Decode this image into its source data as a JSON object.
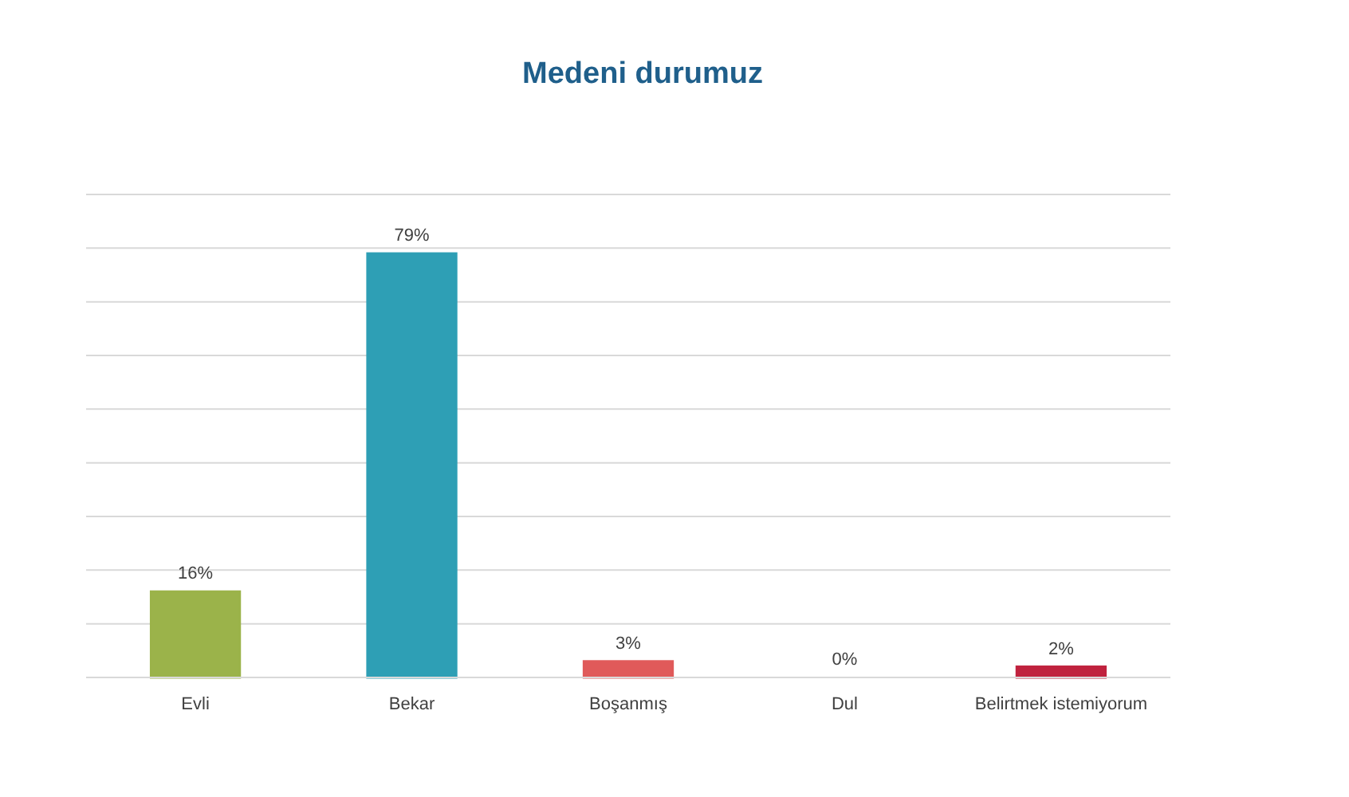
{
  "chart_data": {
    "type": "bar",
    "title": "Medeni durumuz",
    "categories": [
      "Evli",
      "Bekar",
      "Boşanmış",
      "Dul",
      "Belirtmek istemiyorum"
    ],
    "values": [
      16,
      79,
      3,
      0,
      2
    ],
    "colors": [
      "#9bb34a",
      "#2e9fb5",
      "#e05a5a",
      "#2e75b6",
      "#c0223e"
    ],
    "value_labels": [
      "16%",
      "79%",
      "3%",
      "0%",
      "2%"
    ],
    "ylim": [
      0,
      90
    ],
    "yticks": [
      {
        "value": 0,
        "label": null
      },
      {
        "value": 10,
        "label": null
      },
      {
        "value": 20,
        "label": null
      },
      {
        "value": 30,
        "label": null
      },
      {
        "value": 40,
        "label": null
      },
      {
        "value": 50,
        "label": null
      },
      {
        "value": 60,
        "label": null
      },
      {
        "value": 70,
        "label": null
      },
      {
        "value": 80,
        "label": null
      },
      {
        "value": 90,
        "label": null
      }
    ],
    "grid": "y",
    "tick_labels": "x"
  }
}
